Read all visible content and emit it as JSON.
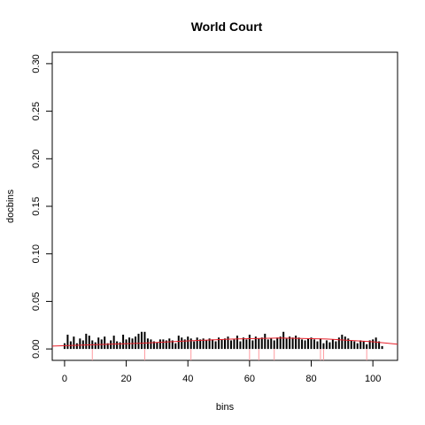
{
  "chart_data": {
    "type": "bar",
    "title": "World Court",
    "xlabel": "bins",
    "ylabel": "docbins",
    "xlim": [
      -4,
      108
    ],
    "ylim": [
      -0.012,
      0.312
    ],
    "x_ticks": [
      0,
      20,
      40,
      60,
      80,
      100
    ],
    "y_ticks": [
      0.0,
      0.05,
      0.1,
      0.15,
      0.2,
      0.25,
      0.3
    ],
    "x_tick_labels": [
      "0",
      "20",
      "40",
      "60",
      "80",
      "100"
    ],
    "y_tick_labels": [
      "0.00",
      "0.05",
      "0.10",
      "0.15",
      "0.20",
      "0.25",
      "0.30"
    ],
    "grid": false,
    "legend": "none",
    "colors": {
      "bars": "#000000",
      "trend": "#e8202a",
      "markers": "#ff9aa0",
      "frame": "#000000"
    },
    "x": [
      0,
      1,
      2,
      3,
      4,
      5,
      6,
      7,
      8,
      9,
      10,
      11,
      12,
      13,
      14,
      15,
      16,
      17,
      18,
      19,
      20,
      21,
      22,
      23,
      24,
      25,
      26,
      27,
      28,
      29,
      30,
      31,
      32,
      33,
      34,
      35,
      36,
      37,
      38,
      39,
      40,
      41,
      42,
      43,
      44,
      45,
      46,
      47,
      48,
      49,
      50,
      51,
      52,
      53,
      54,
      55,
      56,
      57,
      58,
      59,
      60,
      61,
      62,
      63,
      64,
      65,
      66,
      67,
      68,
      69,
      70,
      71,
      72,
      73,
      74,
      75,
      76,
      77,
      78,
      79,
      80,
      81,
      82,
      83,
      84,
      85,
      86,
      87,
      88,
      89,
      90,
      91,
      92,
      93,
      94,
      95,
      96,
      97,
      98,
      99,
      100,
      101,
      102,
      103
    ],
    "values": [
      0.006,
      0.015,
      0.008,
      0.013,
      0.006,
      0.011,
      0.009,
      0.016,
      0.014,
      0.009,
      0.007,
      0.012,
      0.01,
      0.013,
      0.006,
      0.009,
      0.014,
      0.008,
      0.007,
      0.015,
      0.01,
      0.012,
      0.011,
      0.013,
      0.016,
      0.018,
      0.018,
      0.011,
      0.01,
      0.008,
      0.007,
      0.01,
      0.01,
      0.009,
      0.011,
      0.009,
      0.006,
      0.014,
      0.012,
      0.01,
      0.013,
      0.011,
      0.008,
      0.012,
      0.01,
      0.011,
      0.009,
      0.011,
      0.01,
      0.008,
      0.012,
      0.01,
      0.011,
      0.013,
      0.009,
      0.01,
      0.014,
      0.008,
      0.012,
      0.01,
      0.015,
      0.009,
      0.013,
      0.011,
      0.012,
      0.016,
      0.01,
      0.011,
      0.009,
      0.012,
      0.013,
      0.018,
      0.011,
      0.013,
      0.012,
      0.014,
      0.012,
      0.01,
      0.009,
      0.011,
      0.012,
      0.01,
      0.008,
      0.011,
      0.006,
      0.009,
      0.007,
      0.01,
      0.008,
      0.012,
      0.015,
      0.013,
      0.011,
      0.009,
      0.008,
      0.006,
      0.009,
      0.008,
      0.005,
      0.009,
      0.01,
      0.012,
      0.008,
      0.003
    ],
    "trend": {
      "x": [
        -4,
        10,
        25,
        40,
        55,
        70,
        85,
        100,
        108
      ],
      "y": [
        0.003,
        0.0045,
        0.006,
        0.0085,
        0.0105,
        0.0115,
        0.0105,
        0.0075,
        0.005
      ]
    },
    "markers": [
      9,
      26,
      41,
      60,
      63,
      68,
      83,
      84,
      98
    ]
  }
}
